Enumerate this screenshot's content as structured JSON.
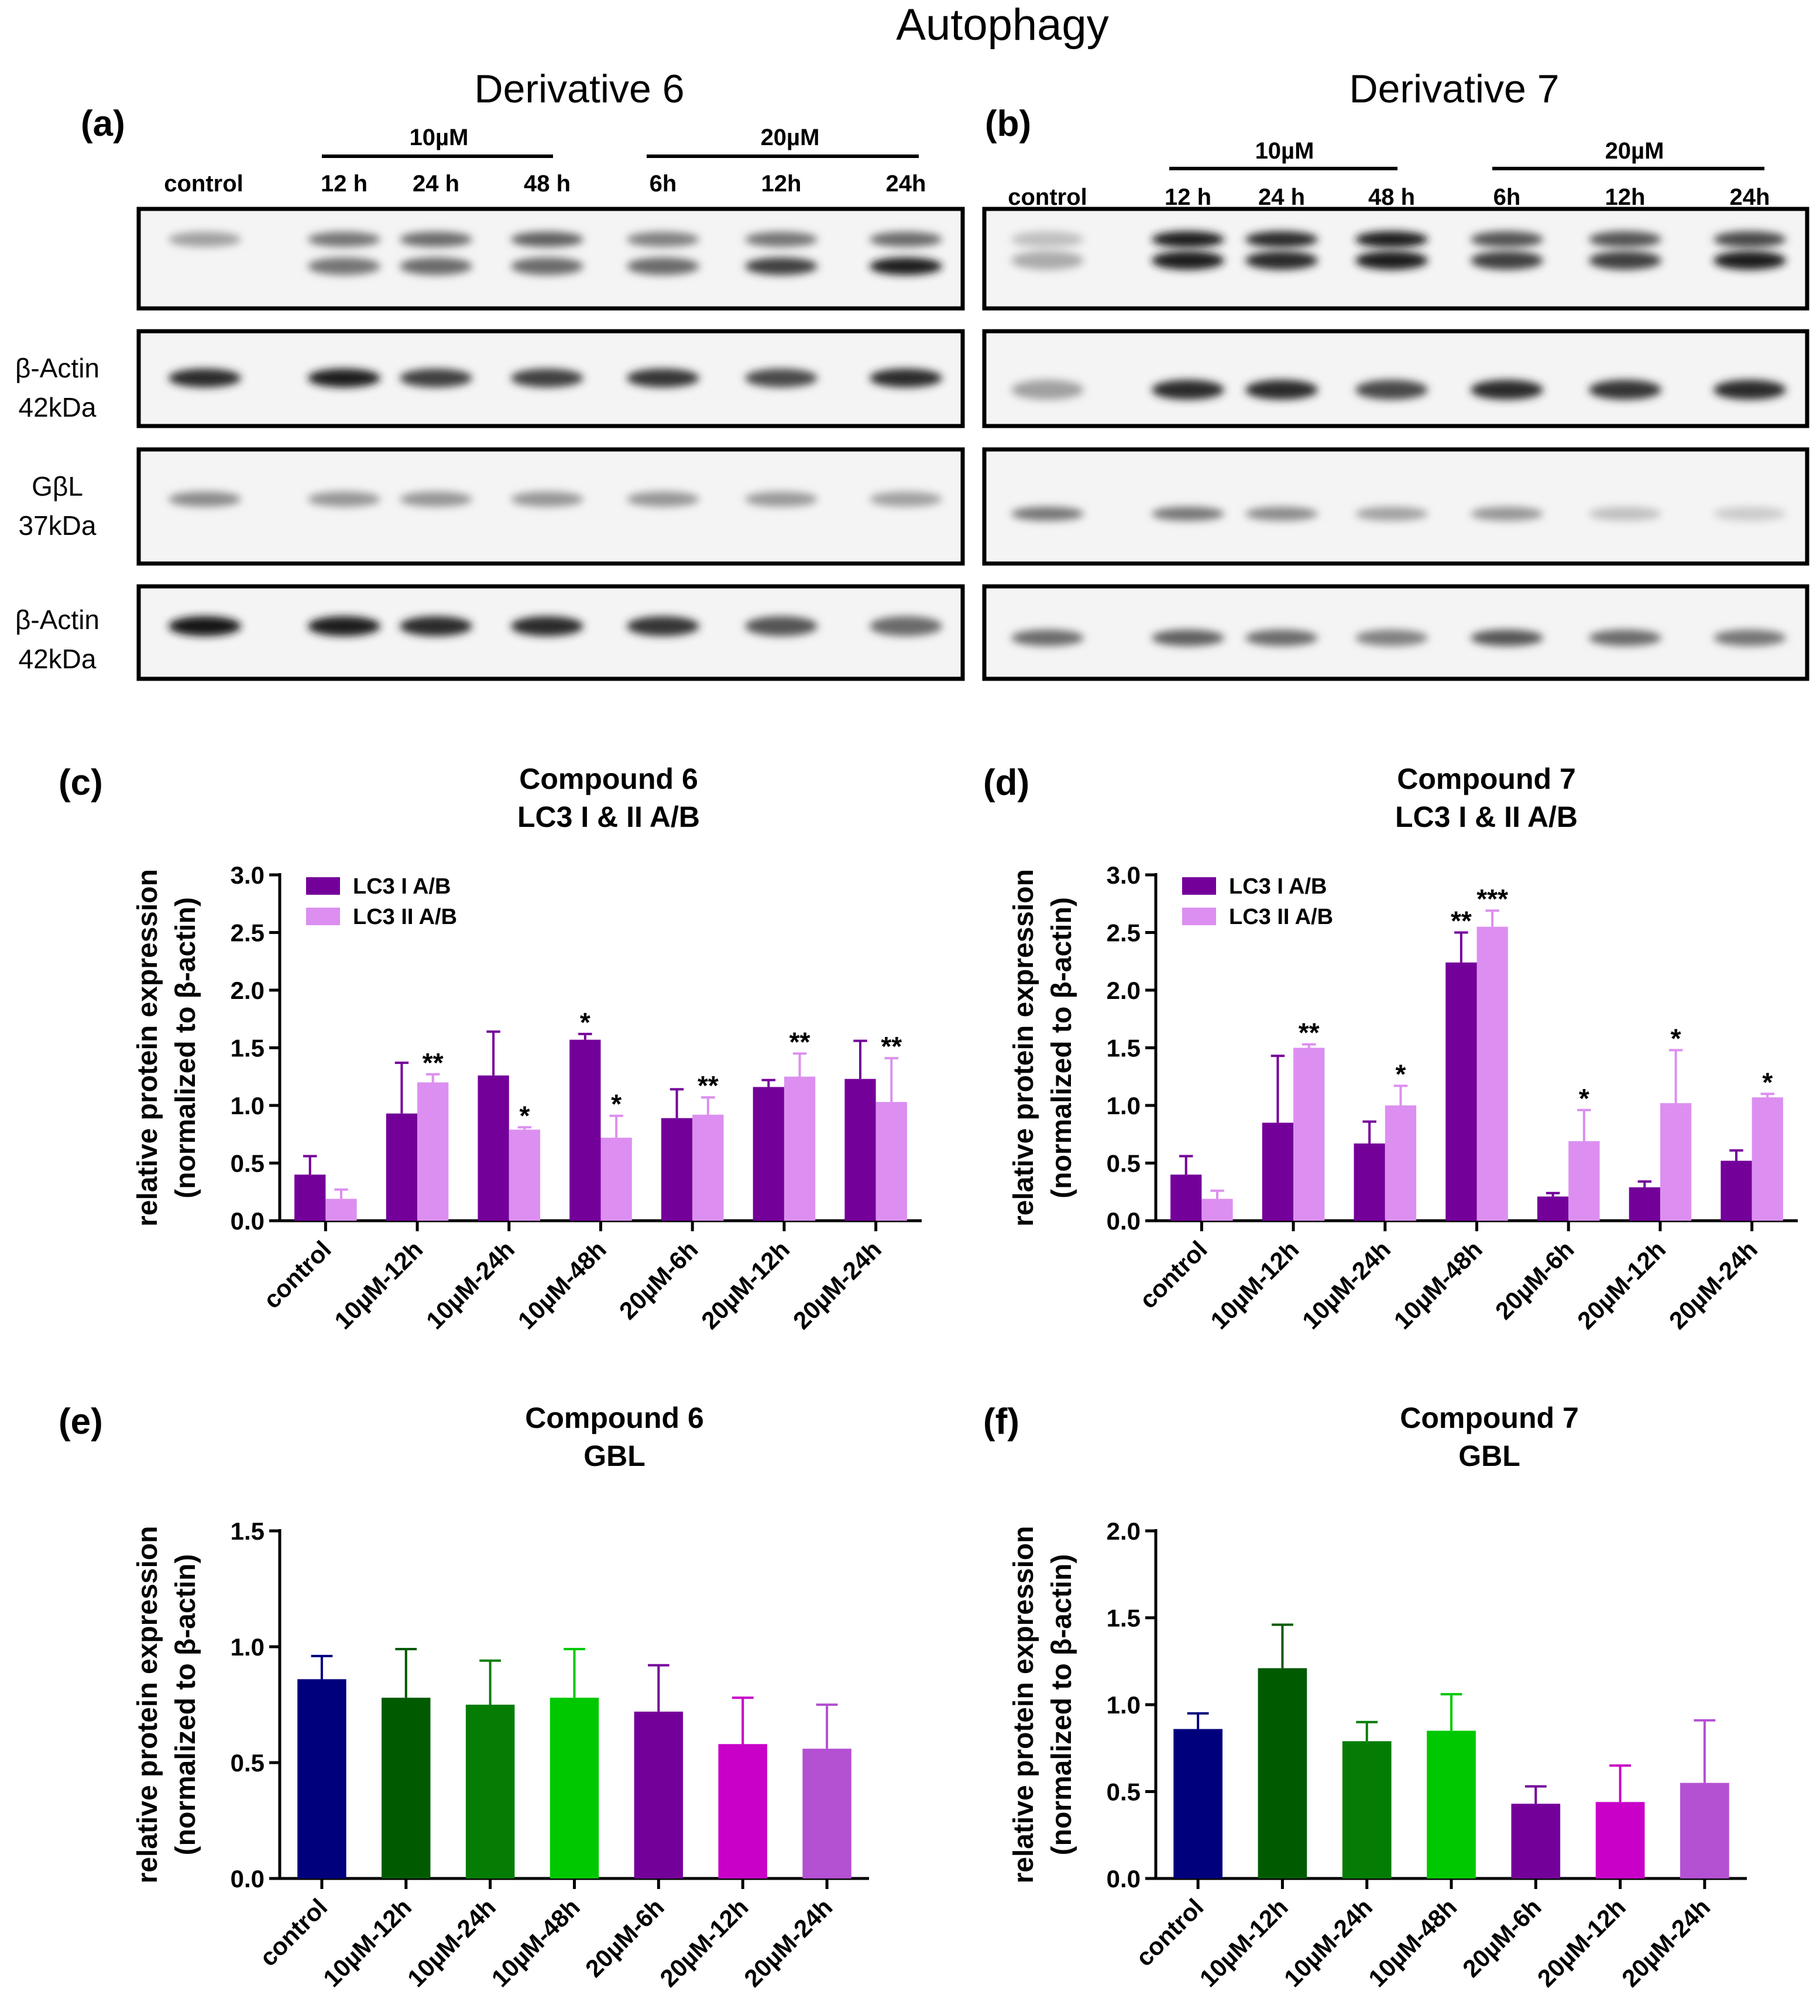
{
  "title": "Autophagy",
  "blots": {
    "a": {
      "panel_label": "(a)",
      "derivative": "Derivative 6",
      "dose_groups": [
        {
          "label": "10µM",
          "lanes": [
            "12 h",
            "24 h",
            "48 h"
          ]
        },
        {
          "label": "20µM",
          "lanes": [
            "6h",
            "12h",
            "24h"
          ]
        }
      ],
      "control_label": "control",
      "lane_intensity": {
        "lc3_upper": [
          0.35,
          0.55,
          0.6,
          0.65,
          0.5,
          0.55,
          0.6
        ],
        "lc3_lower": [
          0.0,
          0.55,
          0.6,
          0.6,
          0.6,
          0.8,
          0.95
        ],
        "actin1": [
          0.9,
          0.95,
          0.8,
          0.8,
          0.85,
          0.75,
          0.9
        ],
        "gbl": [
          0.45,
          0.4,
          0.4,
          0.4,
          0.4,
          0.38,
          0.35
        ],
        "actin2": [
          1.0,
          0.95,
          0.9,
          0.9,
          0.85,
          0.7,
          0.6
        ]
      }
    },
    "b": {
      "panel_label": "(b)",
      "derivative": "Derivative 7",
      "dose_groups": [
        {
          "label": "10µM",
          "lanes": [
            "12 h",
            "24 h",
            "48 h"
          ]
        },
        {
          "label": "20µM",
          "lanes": [
            "6h",
            "12h",
            "24h"
          ]
        }
      ],
      "control_label": "control",
      "lane_intensity": {
        "lc3_upper": [
          0.2,
          0.95,
          0.9,
          0.95,
          0.7,
          0.7,
          0.75
        ],
        "lc3_lower": [
          0.3,
          0.95,
          0.9,
          0.95,
          0.8,
          0.8,
          0.95
        ],
        "actin1": [
          0.35,
          0.9,
          0.9,
          0.75,
          0.9,
          0.85,
          0.9
        ],
        "gbl": [
          0.55,
          0.55,
          0.45,
          0.35,
          0.4,
          0.2,
          0.15
        ],
        "actin2": [
          0.6,
          0.65,
          0.6,
          0.5,
          0.7,
          0.6,
          0.55
        ]
      }
    },
    "row_labels": [
      {
        "line1": "β-Actin",
        "line2": "42kDa"
      },
      {
        "line1": "GβL",
        "line2": "37kDa"
      },
      {
        "line1": "β-Actin",
        "line2": "42kDa"
      }
    ]
  },
  "chart_data": [
    {
      "panel_label": "(c)",
      "type": "bar",
      "title": "Compound 6",
      "subtitle": "LC3 I & II A/B",
      "xlabel": "",
      "ylabel": "relative protein expression",
      "ylabel2": "(normalized to β-actin)",
      "ylim": [
        0,
        3.0
      ],
      "yticks": [
        0.0,
        0.5,
        1.0,
        1.5,
        2.0,
        2.5,
        3.0
      ],
      "tick_decimals": 1,
      "legend": "top-left",
      "categories": [
        "control",
        "10µM-12h",
        "10µM-24h",
        "10µM-48h",
        "20µM-6h",
        "20µM-12h",
        "20µM-24h"
      ],
      "series": [
        {
          "name": "LC3 I A/B",
          "color": "#74009a",
          "values": [
            0.4,
            0.93,
            1.26,
            1.57,
            0.89,
            1.16,
            1.23
          ],
          "errors": [
            0.16,
            0.44,
            0.38,
            0.05,
            0.25,
            0.06,
            0.33
          ],
          "sig": [
            "",
            "",
            "",
            "*",
            "",
            "",
            ""
          ]
        },
        {
          "name": "LC3 II A/B",
          "color": "#dc8ff0",
          "values": [
            0.19,
            1.2,
            0.79,
            0.72,
            0.92,
            1.25,
            1.03
          ],
          "errors": [
            0.08,
            0.07,
            0.02,
            0.19,
            0.15,
            0.2,
            0.38
          ],
          "sig": [
            "",
            "**",
            "*",
            "*",
            "**",
            "**",
            "**"
          ]
        }
      ]
    },
    {
      "panel_label": "(d)",
      "type": "bar",
      "title": "Compound 7",
      "subtitle": "LC3 I & II A/B",
      "xlabel": "",
      "ylabel": "relative protein expression",
      "ylabel2": "(normalized to β-actin)",
      "ylim": [
        0,
        3.0
      ],
      "yticks": [
        0.0,
        0.5,
        1.0,
        1.5,
        2.0,
        2.5,
        3.0
      ],
      "tick_decimals": 1,
      "legend": "top-left",
      "categories": [
        "control",
        "10µM-12h",
        "10µM-24h",
        "10µM-48h",
        "20µM-6h",
        "20µM-12h",
        "20µM-24h"
      ],
      "series": [
        {
          "name": "LC3 I A/B",
          "color": "#74009a",
          "values": [
            0.4,
            0.85,
            0.67,
            2.24,
            0.21,
            0.29,
            0.52
          ],
          "errors": [
            0.16,
            0.58,
            0.19,
            0.26,
            0.03,
            0.05,
            0.09
          ],
          "sig": [
            "",
            "",
            "",
            "**",
            "",
            "",
            ""
          ]
        },
        {
          "name": "LC3 II A/B",
          "color": "#dc8ff0",
          "values": [
            0.19,
            1.5,
            1.0,
            2.55,
            0.69,
            1.02,
            1.07
          ],
          "errors": [
            0.07,
            0.03,
            0.17,
            0.14,
            0.27,
            0.46,
            0.03
          ],
          "sig": [
            "",
            "**",
            "*",
            "***",
            "*",
            "*",
            "*"
          ]
        }
      ]
    },
    {
      "panel_label": "(e)",
      "type": "bar",
      "title": "Compound 6",
      "subtitle": "GBL",
      "xlabel": "",
      "ylabel": "relative protein expression",
      "ylabel2": "(normalized to β-actin)",
      "ylim": [
        0,
        1.5
      ],
      "yticks": [
        0.0,
        0.5,
        1.0,
        1.5
      ],
      "tick_decimals": 1,
      "categories": [
        "control",
        "10µM-12h",
        "10µM-24h",
        "10µM-48h",
        "20µM-6h",
        "20µM-12h",
        "20µM-24h"
      ],
      "values": [
        0.86,
        0.78,
        0.75,
        0.78,
        0.72,
        0.58,
        0.56
      ],
      "errors": [
        0.1,
        0.21,
        0.19,
        0.21,
        0.2,
        0.2,
        0.19
      ],
      "colors": [
        "#00007d",
        "#005a00",
        "#057d05",
        "#00c800",
        "#74009a",
        "#c800c8",
        "#b450d2"
      ]
    },
    {
      "panel_label": "(f)",
      "type": "bar",
      "title": "Compound 7",
      "subtitle": "GBL",
      "xlabel": "",
      "ylabel": "relative protein expression",
      "ylabel2": "(normalized to β-actin)",
      "ylim": [
        0,
        2.0
      ],
      "yticks": [
        0.0,
        0.5,
        1.0,
        1.5,
        2.0
      ],
      "tick_decimals": 1,
      "categories": [
        "control",
        "10µM-12h",
        "10µM-24h",
        "10µM-48h",
        "20µM-6h",
        "20µM-12h",
        "20µM-24h"
      ],
      "values": [
        0.86,
        1.21,
        0.79,
        0.85,
        0.43,
        0.44,
        0.55
      ],
      "errors": [
        0.09,
        0.25,
        0.11,
        0.21,
        0.1,
        0.21,
        0.36
      ],
      "colors": [
        "#00007d",
        "#005a00",
        "#057d05",
        "#00c800",
        "#74009a",
        "#c800c8",
        "#b450d2"
      ]
    }
  ]
}
